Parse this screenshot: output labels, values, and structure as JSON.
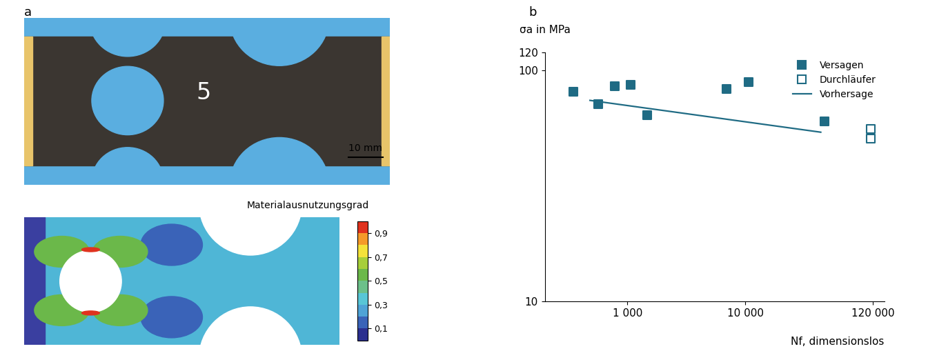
{
  "panel_a": {
    "panel_label": "a",
    "photo": {
      "specimen_label": "5",
      "scale_bar": "10 mm"
    },
    "fe_model": {
      "title": "Materialausnutzungsgrad",
      "colorbar": {
        "range": [
          0,
          1
        ],
        "ticks": [
          {
            "value": 0.9,
            "label": "0,9"
          },
          {
            "value": 0.7,
            "label": "0,7"
          },
          {
            "value": 0.5,
            "label": "0,5"
          },
          {
            "value": 0.3,
            "label": "0,3"
          },
          {
            "value": 0.1,
            "label": "0,1"
          }
        ]
      }
    }
  },
  "chart_data": {
    "panel_label": "b",
    "type": "scatter",
    "y_label": "σa in MPa",
    "x_label": "Nf, dimensionslos",
    "log": true,
    "xlim": [
      200,
      150000
    ],
    "ylim": [
      10,
      120
    ],
    "xticks": [
      {
        "value": 1000,
        "label": "1 000"
      },
      {
        "value": 10000,
        "label": "10 000"
      },
      {
        "value": 120000,
        "label": "120 000"
      }
    ],
    "yticks": [
      10,
      100,
      120
    ],
    "legend": "upper right",
    "series": [
      {
        "name": "Versagen",
        "type": "scatter",
        "marker": "square",
        "color": "#1f6b84",
        "x": [
          348,
          566,
          785,
          1062,
          1474,
          6950,
          10600,
          46600
        ],
        "values": [
          81,
          71.5,
          85.8,
          86.6,
          64.3,
          83.3,
          89.1,
          60.1
        ]
      },
      {
        "name": "Durchläufer",
        "type": "scatter",
        "marker": "square_open",
        "color": "#1f6b84",
        "x": [
          115600,
          115600
        ],
        "values": [
          55.7,
          50.6
        ]
      },
      {
        "name": "Vorhersage",
        "type": "line",
        "line_style": "solid",
        "color": "#1f6b84",
        "x": [
          483,
          43400
        ],
        "values": [
          74.3,
          54.1
        ]
      }
    ]
  }
}
